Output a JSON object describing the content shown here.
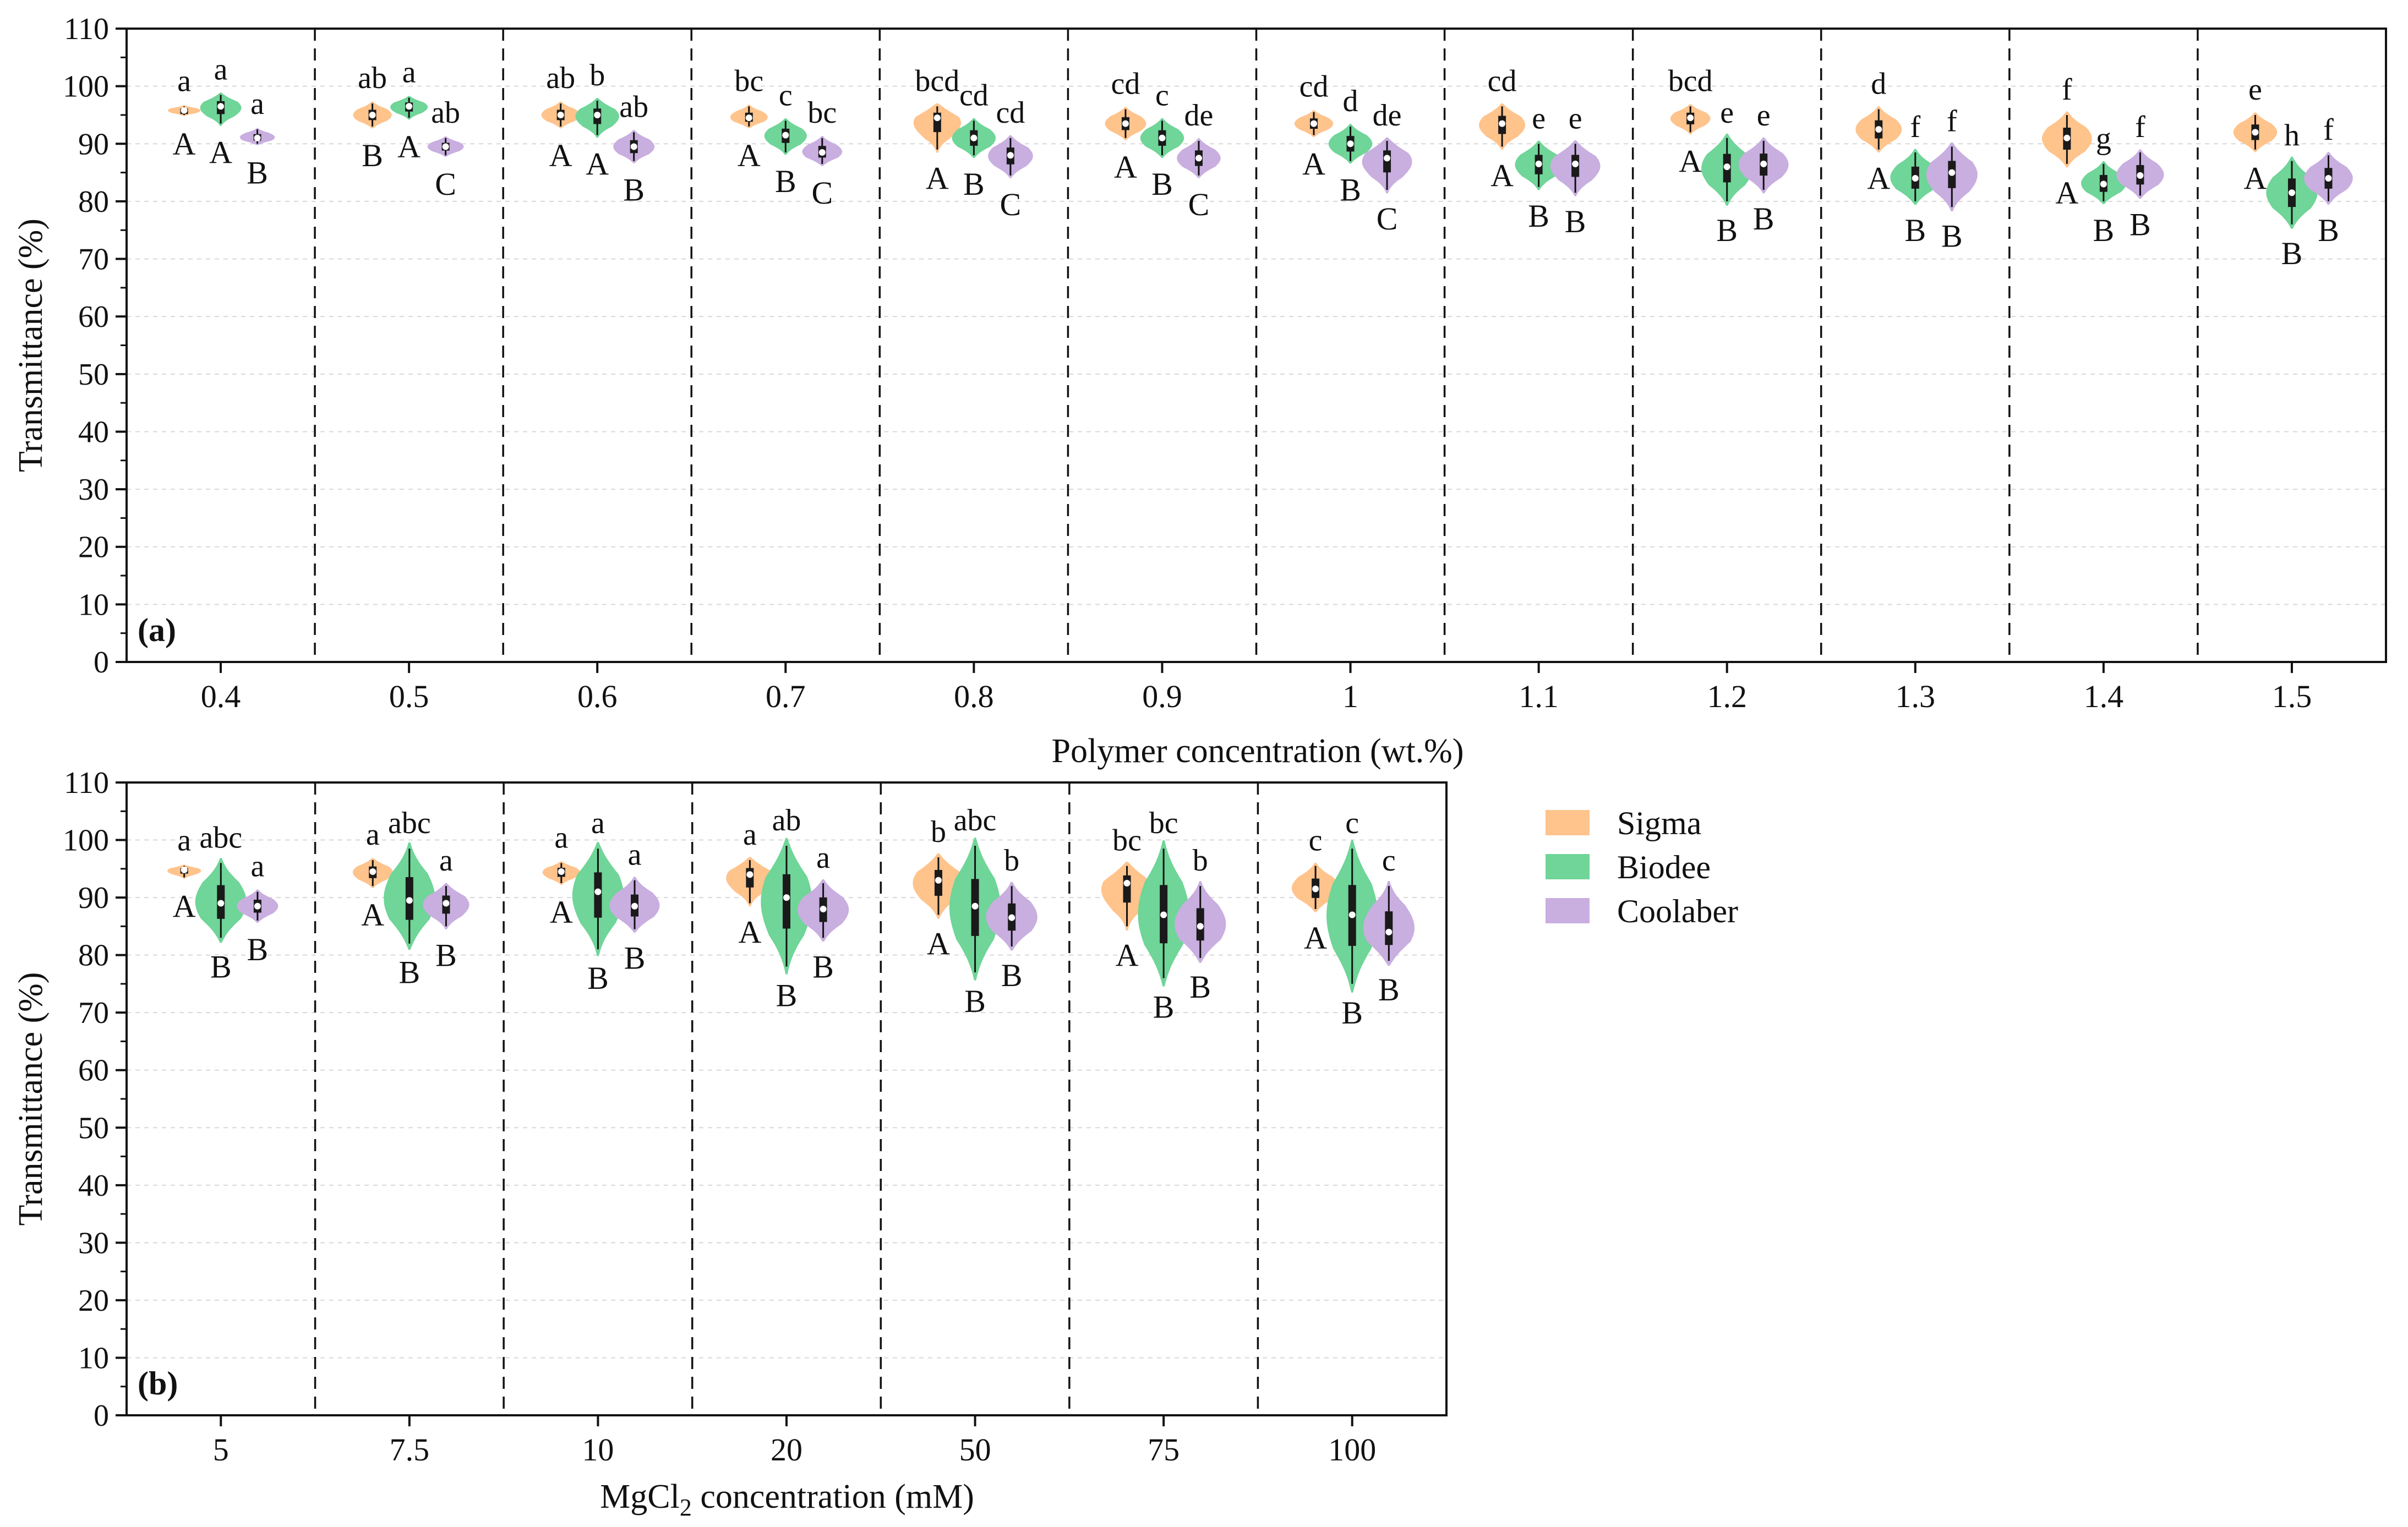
{
  "legend": {
    "items": [
      {
        "name": "Sigma",
        "color": "#FFC38C"
      },
      {
        "name": "Biodee",
        "color": "#6FD598"
      },
      {
        "name": "Coolaber",
        "color": "#C9AEE0"
      }
    ]
  },
  "chart_data": [
    {
      "type": "violin",
      "panel_label": "(a)",
      "ylabel": "Transmittance (%)",
      "xlabel": "Polymer concentration (wt.%)",
      "ylim": [
        0,
        110
      ],
      "yticks": [
        "0",
        "10",
        "20",
        "30",
        "40",
        "50",
        "60",
        "70",
        "80",
        "90",
        "100",
        "110"
      ],
      "categories": [
        "0.4",
        "0.5",
        "0.6",
        "0.7",
        "0.8",
        "0.9",
        "1",
        "1.1",
        "1.2",
        "1.3",
        "1.4",
        "1.5"
      ],
      "series": [
        {
          "name": "Sigma",
          "median": [
            95.8,
            95.0,
            95.0,
            94.5,
            94.5,
            93.5,
            93.5,
            93.5,
            94.5,
            92.5,
            91.0,
            92.0
          ],
          "min": [
            95.0,
            93.0,
            93.0,
            93.0,
            89.0,
            91.0,
            91.5,
            89.5,
            92.0,
            89.0,
            86.5,
            89.0
          ],
          "max": [
            96.5,
            97.0,
            97.0,
            96.5,
            96.5,
            96.0,
            95.5,
            96.5,
            96.5,
            96.0,
            95.0,
            95.0
          ],
          "sig_lower": [
            "a",
            "ab",
            "ab",
            "bc",
            "bcd",
            "cd",
            "cd",
            "cd",
            "bcd",
            "d",
            "f",
            "e"
          ],
          "sig_upper": [
            "A",
            "B",
            "A",
            "A",
            "A",
            "A",
            "A",
            "A",
            "A",
            "A",
            "A",
            "A"
          ]
        },
        {
          "name": "Biodee",
          "median": [
            96.5,
            96.5,
            95.0,
            91.5,
            91.0,
            91.0,
            90.0,
            86.5,
            86.0,
            84.0,
            83.0,
            81.5
          ],
          "min": [
            93.5,
            94.5,
            91.5,
            88.5,
            88.0,
            88.0,
            87.0,
            82.5,
            80.0,
            80.0,
            80.0,
            76.0
          ],
          "max": [
            98.5,
            98.0,
            97.5,
            94.0,
            94.0,
            94.0,
            93.0,
            90.0,
            91.0,
            88.5,
            86.5,
            87.0
          ],
          "sig_lower": [
            "a",
            "a",
            "b",
            "c",
            "cd",
            "c",
            "d",
            "e",
            "e",
            "f",
            "g",
            "h"
          ],
          "sig_upper": [
            "A",
            "A",
            "A",
            "B",
            "B",
            "B",
            "B",
            "B",
            "B",
            "B",
            "B",
            "B"
          ]
        },
        {
          "name": "Coolaber",
          "median": [
            91.0,
            89.5,
            89.5,
            88.5,
            88.0,
            87.5,
            87.5,
            86.5,
            86.5,
            85.0,
            84.5,
            84.0
          ],
          "min": [
            90.0,
            88.0,
            87.0,
            86.5,
            84.5,
            84.5,
            82.0,
            81.5,
            82.0,
            79.0,
            81.0,
            80.0
          ],
          "max": [
            92.5,
            91.0,
            92.0,
            91.0,
            91.0,
            90.5,
            90.5,
            90.0,
            90.5,
            89.5,
            88.5,
            88.0
          ],
          "sig_lower": [
            "a",
            "ab",
            "ab",
            "bc",
            "cd",
            "de",
            "de",
            "e",
            "e",
            "f",
            "f",
            "f"
          ],
          "sig_upper": [
            "B",
            "C",
            "B",
            "C",
            "C",
            "C",
            "C",
            "B",
            "B",
            "B",
            "B",
            "B"
          ]
        }
      ]
    },
    {
      "type": "violin",
      "panel_label": "(b)",
      "ylabel": "Transmittance (%)",
      "xlabel_parts": {
        "base": "MgCl",
        "subscript": "2",
        "rest": " concentration (mM)"
      },
      "ylim": [
        0,
        110
      ],
      "yticks": [
        "0",
        "10",
        "20",
        "30",
        "40",
        "50",
        "60",
        "70",
        "80",
        "90",
        "100",
        "110"
      ],
      "categories": [
        "5",
        "7.5",
        "10",
        "20",
        "50",
        "75",
        "100"
      ],
      "series": [
        {
          "name": "Sigma",
          "median": [
            94.8,
            94.5,
            94.5,
            94.0,
            93.0,
            92.5,
            91.5
          ],
          "min": [
            93.5,
            92.0,
            92.5,
            89.0,
            87.0,
            85.0,
            88.0
          ],
          "max": [
            95.5,
            96.5,
            96.0,
            96.5,
            97.0,
            95.5,
            95.5
          ],
          "sig_lower": [
            "a",
            "a",
            "a",
            "a",
            "b",
            "bc",
            "c"
          ],
          "sig_upper": [
            "A",
            "A",
            "A",
            "A",
            "A",
            "A",
            "A"
          ]
        },
        {
          "name": "Biodee",
          "median": [
            89.0,
            89.5,
            91.0,
            90.0,
            88.5,
            87.0,
            87.0
          ],
          "min": [
            83.0,
            82.0,
            81.0,
            78.0,
            77.0,
            76.0,
            75.0
          ],
          "max": [
            96.0,
            98.5,
            98.5,
            99.0,
            99.0,
            98.5,
            98.5
          ],
          "sig_lower": [
            "abc",
            "abc",
            "a",
            "ab",
            "abc",
            "bc",
            "c"
          ],
          "sig_upper": [
            "B",
            "B",
            "B",
            "B",
            "B",
            "B",
            "B"
          ]
        },
        {
          "name": "Coolaber",
          "median": [
            88.5,
            89.0,
            88.5,
            88.0,
            86.5,
            85.0,
            84.0
          ],
          "min": [
            86.0,
            85.0,
            84.5,
            83.0,
            81.5,
            79.5,
            79.0
          ],
          "max": [
            91.0,
            92.0,
            93.0,
            92.5,
            92.0,
            92.0,
            92.0
          ],
          "sig_lower": [
            "a",
            "a",
            "a",
            "a",
            "b",
            "b",
            "c"
          ],
          "sig_upper": [
            "B",
            "B",
            "B",
            "B",
            "B",
            "B",
            "B"
          ]
        }
      ]
    }
  ]
}
